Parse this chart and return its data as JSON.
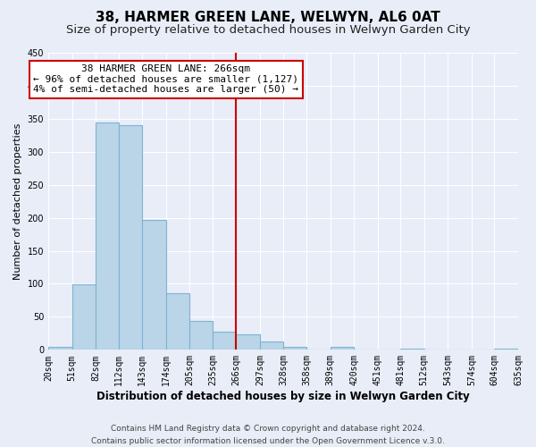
{
  "title": "38, HARMER GREEN LANE, WELWYN, AL6 0AT",
  "subtitle": "Size of property relative to detached houses in Welwyn Garden City",
  "xlabel": "Distribution of detached houses by size in Welwyn Garden City",
  "ylabel": "Number of detached properties",
  "footer_line1": "Contains HM Land Registry data © Crown copyright and database right 2024.",
  "footer_line2": "Contains public sector information licensed under the Open Government Licence v.3.0.",
  "bin_edges": [
    20,
    51,
    82,
    112,
    143,
    174,
    205,
    235,
    266,
    297,
    328,
    358,
    389,
    420,
    451,
    481,
    512,
    543,
    574,
    604,
    635
  ],
  "bin_labels": [
    "20sqm",
    "51sqm",
    "82sqm",
    "112sqm",
    "143sqm",
    "174sqm",
    "205sqm",
    "235sqm",
    "266sqm",
    "297sqm",
    "328sqm",
    "358sqm",
    "389sqm",
    "420sqm",
    "451sqm",
    "481sqm",
    "512sqm",
    "543sqm",
    "574sqm",
    "604sqm",
    "635sqm"
  ],
  "counts": [
    5,
    99,
    344,
    340,
    197,
    86,
    44,
    27,
    24,
    13,
    5,
    0,
    5,
    0,
    0,
    2,
    0,
    0,
    0,
    2
  ],
  "bar_color": "#bad4e8",
  "bar_edge_color": "#7fb3d3",
  "vline_x": 266,
  "vline_color": "#cc0000",
  "annotation_title": "38 HARMER GREEN LANE: 266sqm",
  "annotation_line1": "← 96% of detached houses are smaller (1,127)",
  "annotation_line2": "4% of semi-detached houses are larger (50) →",
  "annotation_box_facecolor": "#ffffff",
  "annotation_box_edgecolor": "#cc0000",
  "ylim": [
    0,
    450
  ],
  "yticks": [
    0,
    50,
    100,
    150,
    200,
    250,
    300,
    350,
    400,
    450
  ],
  "background_color": "#e8edf8",
  "grid_color": "#ffffff",
  "title_fontsize": 11,
  "subtitle_fontsize": 9.5,
  "xlabel_fontsize": 8.5,
  "ylabel_fontsize": 8,
  "tick_fontsize": 7,
  "annotation_fontsize": 8,
  "footer_fontsize": 6.5
}
